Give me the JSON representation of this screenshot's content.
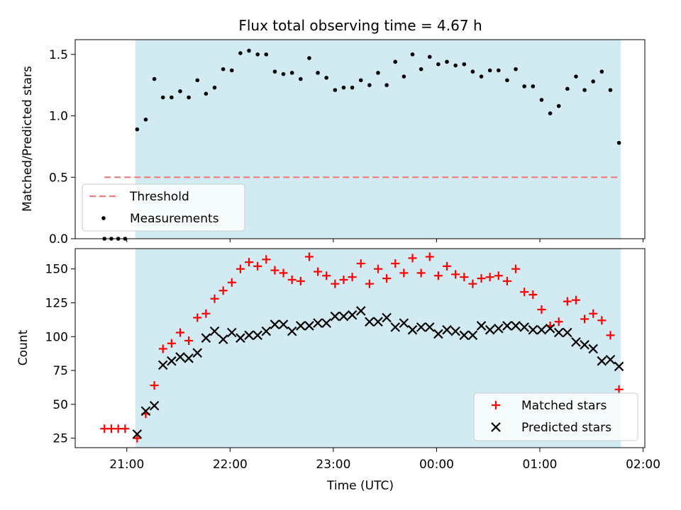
{
  "chart_data": [
    {
      "type": "scatter",
      "title": "Flux total observing time = 4.67 h",
      "xlabel": "",
      "ylabel": "Matched/Predicted stars",
      "ylim": [
        0,
        1.62
      ],
      "yticks": [
        "0.0",
        "0.5",
        "1.0",
        "1.5"
      ],
      "legend_position": "lower-left",
      "observing_window": {
        "start": "21:05",
        "end": "01:47",
        "color": "#add8e6"
      },
      "threshold": {
        "name": "Threshold",
        "value": 0.5,
        "color": "#f08080",
        "x_start": "20:47",
        "x_end": "01:47"
      },
      "series": [
        {
          "name": "Measurements",
          "color": "#000000",
          "points": [
            [
              "20:47",
              0.0
            ],
            [
              "20:51",
              0.0
            ],
            [
              "20:55",
              0.0
            ],
            [
              "20:59",
              0.0
            ],
            [
              "21:06",
              0.89
            ],
            [
              "21:11",
              0.97
            ],
            [
              "21:16",
              1.3
            ],
            [
              "21:21",
              1.15
            ],
            [
              "21:26",
              1.15
            ],
            [
              "21:31",
              1.2
            ],
            [
              "21:36",
              1.15
            ],
            [
              "21:41",
              1.29
            ],
            [
              "21:46",
              1.18
            ],
            [
              "21:51",
              1.23
            ],
            [
              "21:56",
              1.38
            ],
            [
              "22:01",
              1.37
            ],
            [
              "22:06",
              1.51
            ],
            [
              "22:11",
              1.53
            ],
            [
              "22:16",
              1.5
            ],
            [
              "22:21",
              1.5
            ],
            [
              "22:26",
              1.36
            ],
            [
              "22:31",
              1.34
            ],
            [
              "22:36",
              1.35
            ],
            [
              "22:41",
              1.3
            ],
            [
              "22:46",
              1.47
            ],
            [
              "22:51",
              1.35
            ],
            [
              "22:56",
              1.31
            ],
            [
              "23:01",
              1.21
            ],
            [
              "23:06",
              1.23
            ],
            [
              "23:11",
              1.23
            ],
            [
              "23:16",
              1.29
            ],
            [
              "23:21",
              1.25
            ],
            [
              "23:26",
              1.35
            ],
            [
              "23:31",
              1.25
            ],
            [
              "23:36",
              1.44
            ],
            [
              "23:41",
              1.32
            ],
            [
              "23:46",
              1.5
            ],
            [
              "23:51",
              1.38
            ],
            [
              "23:56",
              1.48
            ],
            [
              "00:01",
              1.42
            ],
            [
              "00:06",
              1.44
            ],
            [
              "00:11",
              1.41
            ],
            [
              "00:16",
              1.42
            ],
            [
              "00:21",
              1.36
            ],
            [
              "00:26",
              1.32
            ],
            [
              "00:31",
              1.37
            ],
            [
              "00:36",
              1.37
            ],
            [
              "00:41",
              1.29
            ],
            [
              "00:46",
              1.38
            ],
            [
              "00:51",
              1.24
            ],
            [
              "00:56",
              1.24
            ],
            [
              "01:01",
              1.13
            ],
            [
              "01:06",
              1.02
            ],
            [
              "01:11",
              1.08
            ],
            [
              "01:16",
              1.22
            ],
            [
              "01:21",
              1.32
            ],
            [
              "01:26",
              1.21
            ],
            [
              "01:31",
              1.28
            ],
            [
              "01:36",
              1.36
            ],
            [
              "01:41",
              1.21
            ],
            [
              "01:46",
              0.78
            ]
          ]
        }
      ]
    },
    {
      "type": "scatter",
      "xlabel": "Time (UTC)",
      "ylabel": "Count",
      "ylim": [
        18,
        165
      ],
      "yticks": [
        "25",
        "50",
        "75",
        "100",
        "125",
        "150"
      ],
      "xlim": [
        "20:30",
        "02:01"
      ],
      "xticks": [
        "21:00",
        "22:00",
        "23:00",
        "00:00",
        "01:00",
        "02:00"
      ],
      "legend_position": "lower-right",
      "observing_window": {
        "start": "21:05",
        "end": "01:47",
        "color": "#add8e6"
      },
      "series": [
        {
          "name": "Matched stars",
          "marker": "plus",
          "color": "#ff0000",
          "points": [
            [
              "20:47",
              32
            ],
            [
              "20:51",
              32
            ],
            [
              "20:55",
              32
            ],
            [
              "20:59",
              32
            ],
            [
              "21:06",
              25
            ],
            [
              "21:11",
              43
            ],
            [
              "21:16",
              64
            ],
            [
              "21:21",
              91
            ],
            [
              "21:26",
              95
            ],
            [
              "21:31",
              103
            ],
            [
              "21:36",
              97
            ],
            [
              "21:41",
              114
            ],
            [
              "21:46",
              117
            ],
            [
              "21:51",
              128
            ],
            [
              "21:56",
              134
            ],
            [
              "22:01",
              140
            ],
            [
              "22:06",
              150
            ],
            [
              "22:11",
              155
            ],
            [
              "22:16",
              152
            ],
            [
              "22:21",
              157
            ],
            [
              "22:26",
              149
            ],
            [
              "22:31",
              147
            ],
            [
              "22:36",
              142
            ],
            [
              "22:41",
              141
            ],
            [
              "22:46",
              159
            ],
            [
              "22:51",
              148
            ],
            [
              "22:56",
              145
            ],
            [
              "23:01",
              139
            ],
            [
              "23:06",
              142
            ],
            [
              "23:11",
              144
            ],
            [
              "23:16",
              154
            ],
            [
              "23:21",
              139
            ],
            [
              "23:26",
              150
            ],
            [
              "23:31",
              143
            ],
            [
              "23:36",
              154
            ],
            [
              "23:41",
              147
            ],
            [
              "23:46",
              158
            ],
            [
              "23:51",
              147
            ],
            [
              "23:56",
              159
            ],
            [
              "00:01",
              145
            ],
            [
              "00:06",
              152
            ],
            [
              "00:11",
              146
            ],
            [
              "00:16",
              144
            ],
            [
              "00:21",
              139
            ],
            [
              "00:26",
              143
            ],
            [
              "00:31",
              144
            ],
            [
              "00:36",
              145
            ],
            [
              "00:41",
              141
            ],
            [
              "00:46",
              150
            ],
            [
              "00:51",
              133
            ],
            [
              "00:56",
              131
            ],
            [
              "01:01",
              120
            ],
            [
              "01:06",
              108
            ],
            [
              "01:11",
              111
            ],
            [
              "01:16",
              126
            ],
            [
              "01:21",
              127
            ],
            [
              "01:26",
              113
            ],
            [
              "01:31",
              117
            ],
            [
              "01:36",
              112
            ],
            [
              "01:41",
              101
            ],
            [
              "01:46",
              61
            ]
          ]
        },
        {
          "name": "Predicted stars",
          "marker": "x",
          "color": "#000000",
          "points": [
            [
              "21:06",
              28
            ],
            [
              "21:11",
              45
            ],
            [
              "21:16",
              49
            ],
            [
              "21:21",
              79
            ],
            [
              "21:26",
              82
            ],
            [
              "21:31",
              85
            ],
            [
              "21:36",
              84
            ],
            [
              "21:41",
              88
            ],
            [
              "21:46",
              99
            ],
            [
              "21:51",
              104
            ],
            [
              "21:56",
              98
            ],
            [
              "22:01",
              103
            ],
            [
              "22:06",
              99
            ],
            [
              "22:11",
              101
            ],
            [
              "22:16",
              101
            ],
            [
              "22:21",
              104
            ],
            [
              "22:26",
              109
            ],
            [
              "22:31",
              109
            ],
            [
              "22:36",
              104
            ],
            [
              "22:41",
              108
            ],
            [
              "22:46",
              108
            ],
            [
              "22:51",
              110
            ],
            [
              "22:56",
              110
            ],
            [
              "23:01",
              115
            ],
            [
              "23:06",
              115
            ],
            [
              "23:11",
              116
            ],
            [
              "23:16",
              119
            ],
            [
              "23:21",
              111
            ],
            [
              "23:26",
              111
            ],
            [
              "23:31",
              114
            ],
            [
              "23:36",
              107
            ],
            [
              "23:41",
              110
            ],
            [
              "23:46",
              105
            ],
            [
              "23:51",
              107
            ],
            [
              "23:56",
              107
            ],
            [
              "00:01",
              102
            ],
            [
              "00:06",
              105
            ],
            [
              "00:11",
              104
            ],
            [
              "00:16",
              101
            ],
            [
              "00:21",
              101
            ],
            [
              "00:26",
              108
            ],
            [
              "00:31",
              105
            ],
            [
              "00:36",
              106
            ],
            [
              "00:41",
              108
            ],
            [
              "00:46",
              108
            ],
            [
              "00:51",
              107
            ],
            [
              "00:56",
              105
            ],
            [
              "01:01",
              105
            ],
            [
              "01:06",
              106
            ],
            [
              "01:11",
              103
            ],
            [
              "01:16",
              103
            ],
            [
              "01:21",
              96
            ],
            [
              "01:26",
              94
            ],
            [
              "01:31",
              91
            ],
            [
              "01:36",
              82
            ],
            [
              "01:41",
              83
            ],
            [
              "01:46",
              78
            ]
          ]
        }
      ]
    }
  ]
}
